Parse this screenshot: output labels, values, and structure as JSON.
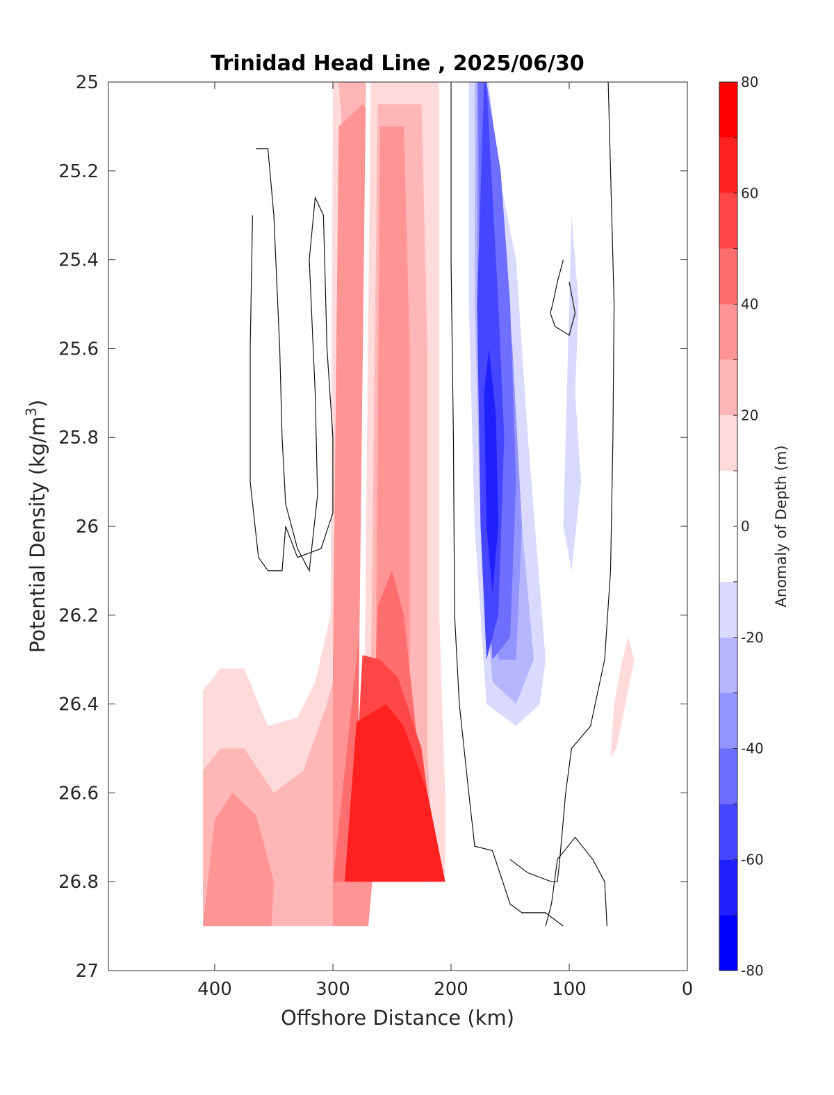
{
  "chart_data": {
    "type": "filled-contour",
    "title": "Trinidad Head Line , 2025/06/30",
    "xlabel": "Offshore Distance (km)",
    "ylabel_main": "Potential Density (kg/m",
    "ylabel_sup": "3",
    "ylabel_close": ")",
    "xlim": [
      490,
      0
    ],
    "ylim": [
      25,
      27
    ],
    "x_reversed": true,
    "y_reversed": true,
    "x_ticks": [
      400,
      300,
      200,
      100,
      0
    ],
    "y_ticks": [
      "25",
      "25.2",
      "25.4",
      "25.6",
      "25.8",
      "26",
      "26.2",
      "26.4",
      "26.6",
      "26.8",
      "27"
    ],
    "colorbar": {
      "label": "Anomaly of Depth (m)",
      "range": [
        -80,
        80
      ],
      "levels": [
        -80,
        -70,
        -60,
        -50,
        -40,
        -30,
        -20,
        -10,
        0,
        10,
        20,
        30,
        40,
        50,
        60,
        70,
        80
      ],
      "tick_values": [
        -80,
        -60,
        -40,
        -20,
        0,
        20,
        40,
        60,
        80
      ],
      "tick_labels": [
        "-80",
        "-60",
        "-40",
        "-20",
        "0",
        "20",
        "40",
        "60",
        "80"
      ],
      "colors": [
        "#0000ff",
        "#2020ff",
        "#4646ff",
        "#6e6eff",
        "#9494ff",
        "#b6b6ff",
        "#dadaff",
        "#ffffff",
        "#ffffff",
        "#ffdada",
        "#ffb6b6",
        "#ff9494",
        "#ff6e6e",
        "#ff4646",
        "#ff2020",
        "#ff0000"
      ]
    },
    "anomaly_regions": [
      {
        "level": 10,
        "points": [
          [
            410,
            25.04
          ],
          [
            402,
            25.0
          ],
          [
            375,
            25.0
          ],
          [
            375,
            26.1
          ],
          [
            360,
            26.2
          ],
          [
            345,
            26.28
          ],
          [
            320,
            26.22
          ],
          [
            308,
            26.1
          ],
          [
            303,
            25.0
          ],
          [
            270,
            25.0
          ],
          [
            270,
            26.9
          ],
          [
            410,
            26.9
          ]
        ]
      },
      {
        "level": 20,
        "points": [
          [
            410,
            26.37
          ],
          [
            395,
            26.32
          ],
          [
            375,
            26.32
          ],
          [
            355,
            26.45
          ],
          [
            330,
            26.43
          ],
          [
            315,
            26.35
          ],
          [
            302,
            26.2
          ],
          [
            300,
            25.0
          ],
          [
            270,
            25.0
          ],
          [
            270,
            26.9
          ],
          [
            410,
            26.9
          ]
        ]
      },
      {
        "level": 30,
        "points": [
          [
            410,
            26.55
          ],
          [
            395,
            26.5
          ],
          [
            375,
            26.5
          ],
          [
            350,
            26.6
          ],
          [
            325,
            26.55
          ],
          [
            305,
            26.4
          ],
          [
            295,
            26.3
          ],
          [
            290,
            25.2
          ],
          [
            295,
            25.0
          ],
          [
            270,
            25.0
          ],
          [
            270,
            26.9
          ],
          [
            410,
            26.9
          ]
        ]
      },
      {
        "level": 40,
        "points": [
          [
            400,
            26.66
          ],
          [
            385,
            26.6
          ],
          [
            365,
            26.65
          ],
          [
            350,
            26.8
          ],
          [
            352,
            26.9
          ],
          [
            410,
            26.9
          ]
        ]
      },
      {
        "level": 40,
        "points": [
          [
            295,
            25.1
          ],
          [
            275,
            25.05
          ],
          [
            260,
            25.1
          ],
          [
            250,
            25.3
          ],
          [
            250,
            26.3
          ],
          [
            270,
            26.9
          ],
          [
            300,
            26.9
          ],
          [
            300,
            26.3
          ]
        ]
      },
      {
        "level": 50,
        "points": [
          [
            288,
            26.5
          ],
          [
            280,
            26.3
          ],
          [
            270,
            26.07
          ],
          [
            262,
            26.1
          ],
          [
            255,
            26.4
          ],
          [
            255,
            26.8
          ],
          [
            300,
            26.8
          ]
        ]
      },
      {
        "level": 10,
        "points": [
          [
            272,
            25.0
          ],
          [
            202,
            25.0
          ],
          [
            203,
            26.0
          ],
          [
            200,
            26.4
          ],
          [
            200,
            26.8
          ],
          [
            280,
            26.8
          ]
        ]
      },
      {
        "level": 20,
        "points": [
          [
            268,
            25.0
          ],
          [
            210,
            25.0
          ],
          [
            210,
            26.2
          ],
          [
            205,
            26.6
          ],
          [
            205,
            26.8
          ],
          [
            275,
            26.8
          ]
        ]
      },
      {
        "level": 30,
        "points": [
          [
            262,
            25.05
          ],
          [
            225,
            25.05
          ],
          [
            220,
            25.6
          ],
          [
            220,
            26.5
          ],
          [
            215,
            26.8
          ],
          [
            270,
            26.8
          ]
        ]
      },
      {
        "level": 40,
        "points": [
          [
            260,
            25.1
          ],
          [
            240,
            25.1
          ],
          [
            235,
            25.6
          ],
          [
            235,
            26.4
          ],
          [
            230,
            26.8
          ],
          [
            265,
            26.8
          ]
        ]
      },
      {
        "level": 50,
        "points": [
          [
            262,
            26.18
          ],
          [
            250,
            26.1
          ],
          [
            240,
            26.2
          ],
          [
            230,
            26.45
          ],
          [
            220,
            26.8
          ],
          [
            270,
            26.8
          ]
        ]
      },
      {
        "level": 60,
        "points": [
          [
            275,
            26.29
          ],
          [
            260,
            26.3
          ],
          [
            245,
            26.34
          ],
          [
            225,
            26.5
          ],
          [
            210,
            26.8
          ],
          [
            285,
            26.8
          ]
        ]
      },
      {
        "level": 70,
        "points": [
          [
            280,
            26.44
          ],
          [
            255,
            26.4
          ],
          [
            240,
            26.45
          ],
          [
            220,
            26.6
          ],
          [
            205,
            26.8
          ],
          [
            290,
            26.8
          ]
        ]
      },
      {
        "level": 10,
        "points": [
          [
            200,
            26.8
          ],
          [
            190,
            26.9
          ],
          [
            180,
            26.9
          ],
          [
            185,
            26.82
          ],
          [
            198,
            26.75
          ]
        ]
      },
      {
        "level": -10,
        "points": [
          [
            192,
            25.0
          ],
          [
            165,
            25.0
          ],
          [
            160,
            25.3
          ],
          [
            145,
            25.5
          ],
          [
            140,
            25.8
          ],
          [
            130,
            26.3
          ],
          [
            120,
            26.45
          ],
          [
            105,
            26.6
          ],
          [
            110,
            26.55
          ],
          [
            150,
            26.5
          ],
          [
            175,
            26.55
          ],
          [
            180,
            26.5
          ],
          [
            185,
            26.0
          ],
          [
            195,
            25.5
          ]
        ]
      },
      {
        "level": -10,
        "points": [
          [
            90,
            25.15
          ],
          [
            85,
            25.35
          ],
          [
            80,
            25.5
          ],
          [
            82,
            25.7
          ],
          [
            85,
            25.85
          ],
          [
            80,
            26.0
          ],
          [
            78,
            26.2
          ],
          [
            80,
            25.8
          ],
          [
            75,
            25.4
          ]
        ]
      },
      {
        "level": -20,
        "points": [
          [
            185,
            25.0
          ],
          [
            168,
            25.0
          ],
          [
            160,
            25.2
          ],
          [
            145,
            25.4
          ],
          [
            135,
            25.8
          ],
          [
            120,
            26.3
          ],
          [
            125,
            26.4
          ],
          [
            145,
            26.45
          ],
          [
            170,
            26.4
          ],
          [
            180,
            26.0
          ],
          [
            185,
            25.5
          ]
        ]
      },
      {
        "level": -20,
        "points": [
          [
            98,
            25.3
          ],
          [
            92,
            25.5
          ],
          [
            95,
            25.7
          ],
          [
            90,
            25.9
          ],
          [
            98,
            26.1
          ],
          [
            105,
            26.0
          ],
          [
            100,
            25.5
          ]
        ]
      },
      {
        "level": -30,
        "points": [
          [
            180,
            25.0
          ],
          [
            170,
            25.0
          ],
          [
            160,
            25.3
          ],
          [
            150,
            25.6
          ],
          [
            140,
            26.0
          ],
          [
            130,
            26.3
          ],
          [
            145,
            26.4
          ],
          [
            165,
            26.35
          ],
          [
            175,
            26.0
          ],
          [
            180,
            25.5
          ]
        ]
      },
      {
        "level": -40,
        "points": [
          [
            178,
            25.0
          ],
          [
            170,
            25.0
          ],
          [
            158,
            25.3
          ],
          [
            148,
            25.6
          ],
          [
            140,
            26.0
          ],
          [
            145,
            26.3
          ],
          [
            160,
            26.3
          ],
          [
            172,
            26.0
          ],
          [
            178,
            25.5
          ]
        ]
      },
      {
        "level": -50,
        "points": [
          [
            177,
            25.0
          ],
          [
            170,
            25.0
          ],
          [
            158,
            25.2
          ],
          [
            150,
            25.5
          ],
          [
            145,
            25.9
          ],
          [
            150,
            26.25
          ],
          [
            165,
            26.3
          ],
          [
            172,
            26.0
          ],
          [
            176,
            25.5
          ]
        ]
      },
      {
        "level": -60,
        "points": [
          [
            172,
            25.0
          ],
          [
            170,
            25.0
          ],
          [
            164,
            25.3
          ],
          [
            160,
            25.5
          ],
          [
            155,
            25.8
          ],
          [
            160,
            26.2
          ],
          [
            170,
            26.3
          ],
          [
            175,
            26.0
          ],
          [
            178,
            25.5
          ]
        ]
      },
      {
        "level": -70,
        "points": [
          [
            168,
            25.6
          ],
          [
            162,
            25.75
          ],
          [
            160,
            26.0
          ],
          [
            165,
            26.15
          ],
          [
            170,
            26.0
          ],
          [
            172,
            25.7
          ]
        ]
      },
      {
        "level": 10,
        "points": [
          [
            50,
            25.98
          ],
          [
            45,
            26.3
          ],
          [
            60,
            26.5
          ],
          [
            70,
            26.55
          ],
          [
            75,
            26.5
          ],
          [
            80,
            26.7
          ],
          [
            50,
            26.9
          ],
          [
            45,
            26.5
          ]
        ]
      },
      {
        "level": 10,
        "points": [
          [
            100,
            26.56
          ],
          [
            95,
            26.6
          ],
          [
            100,
            26.65
          ],
          [
            105,
            26.7
          ],
          [
            115,
            26.6
          ]
        ]
      },
      {
        "level": 20,
        "points": [
          [
            50,
            26.25
          ],
          [
            45,
            26.3
          ],
          [
            60,
            26.5
          ],
          [
            65,
            26.52
          ],
          [
            62,
            26.4
          ],
          [
            55,
            26.3
          ]
        ]
      },
      {
        "level": 10,
        "points": [
          [
            190,
            26.8
          ],
          [
            180,
            26.82
          ],
          [
            160,
            26.85
          ],
          [
            130,
            26.85
          ],
          [
            110,
            26.9
          ],
          [
            185,
            26.9
          ]
        ]
      }
    ],
    "contour_lines_zero": [
      [
        [
          200,
          25.0
        ],
        [
          200,
          25.4
        ],
        [
          198,
          25.8
        ],
        [
          197,
          26.2
        ],
        [
          193,
          26.4
        ],
        [
          185,
          26.6
        ],
        [
          180,
          26.72
        ],
        [
          165,
          26.73
        ],
        [
          150,
          26.85
        ],
        [
          140,
          26.87
        ],
        [
          120,
          26.87
        ],
        [
          105,
          26.9
        ]
      ],
      [
        [
          67,
          25.0
        ],
        [
          62,
          25.5
        ],
        [
          63,
          25.8
        ],
        [
          65,
          26.1
        ],
        [
          70,
          26.3
        ],
        [
          82,
          26.45
        ],
        [
          98,
          26.5
        ],
        [
          103,
          26.6
        ],
        [
          108,
          26.75
        ],
        [
          110,
          26.8
        ],
        [
          115,
          26.8
        ],
        [
          135,
          26.78
        ],
        [
          150,
          26.75
        ]
      ],
      [
        [
          365,
          25.15
        ],
        [
          355,
          25.15
        ],
        [
          350,
          25.3
        ],
        [
          345,
          25.6
        ],
        [
          343,
          25.8
        ],
        [
          340,
          25.95
        ],
        [
          330,
          26.05
        ],
        [
          320,
          26.1
        ],
        [
          313,
          25.93
        ],
        [
          315,
          25.7
        ],
        [
          320,
          25.4
        ],
        [
          315,
          25.26
        ],
        [
          308,
          25.3
        ],
        [
          305,
          25.6
        ],
        [
          300,
          25.8
        ],
        [
          300,
          25.97
        ],
        [
          310,
          26.05
        ],
        [
          330,
          26.07
        ],
        [
          340,
          26.0
        ],
        [
          343,
          26.1
        ],
        [
          355,
          26.1
        ],
        [
          363,
          26.07
        ],
        [
          370,
          25.9
        ],
        [
          370,
          25.6
        ],
        [
          368,
          25.3
        ]
      ],
      [
        [
          105,
          25.4
        ],
        [
          110,
          25.45
        ],
        [
          114,
          25.5
        ],
        [
          116,
          25.52
        ],
        [
          112,
          25.55
        ],
        [
          100,
          25.57
        ],
        [
          95,
          25.52
        ],
        [
          100,
          25.45
        ]
      ],
      [
        [
          68,
          26.9
        ],
        [
          70,
          26.8
        ],
        [
          80,
          26.75
        ],
        [
          95,
          26.7
        ],
        [
          110,
          26.75
        ],
        [
          115,
          26.85
        ],
        [
          120,
          26.9
        ]
      ]
    ]
  }
}
